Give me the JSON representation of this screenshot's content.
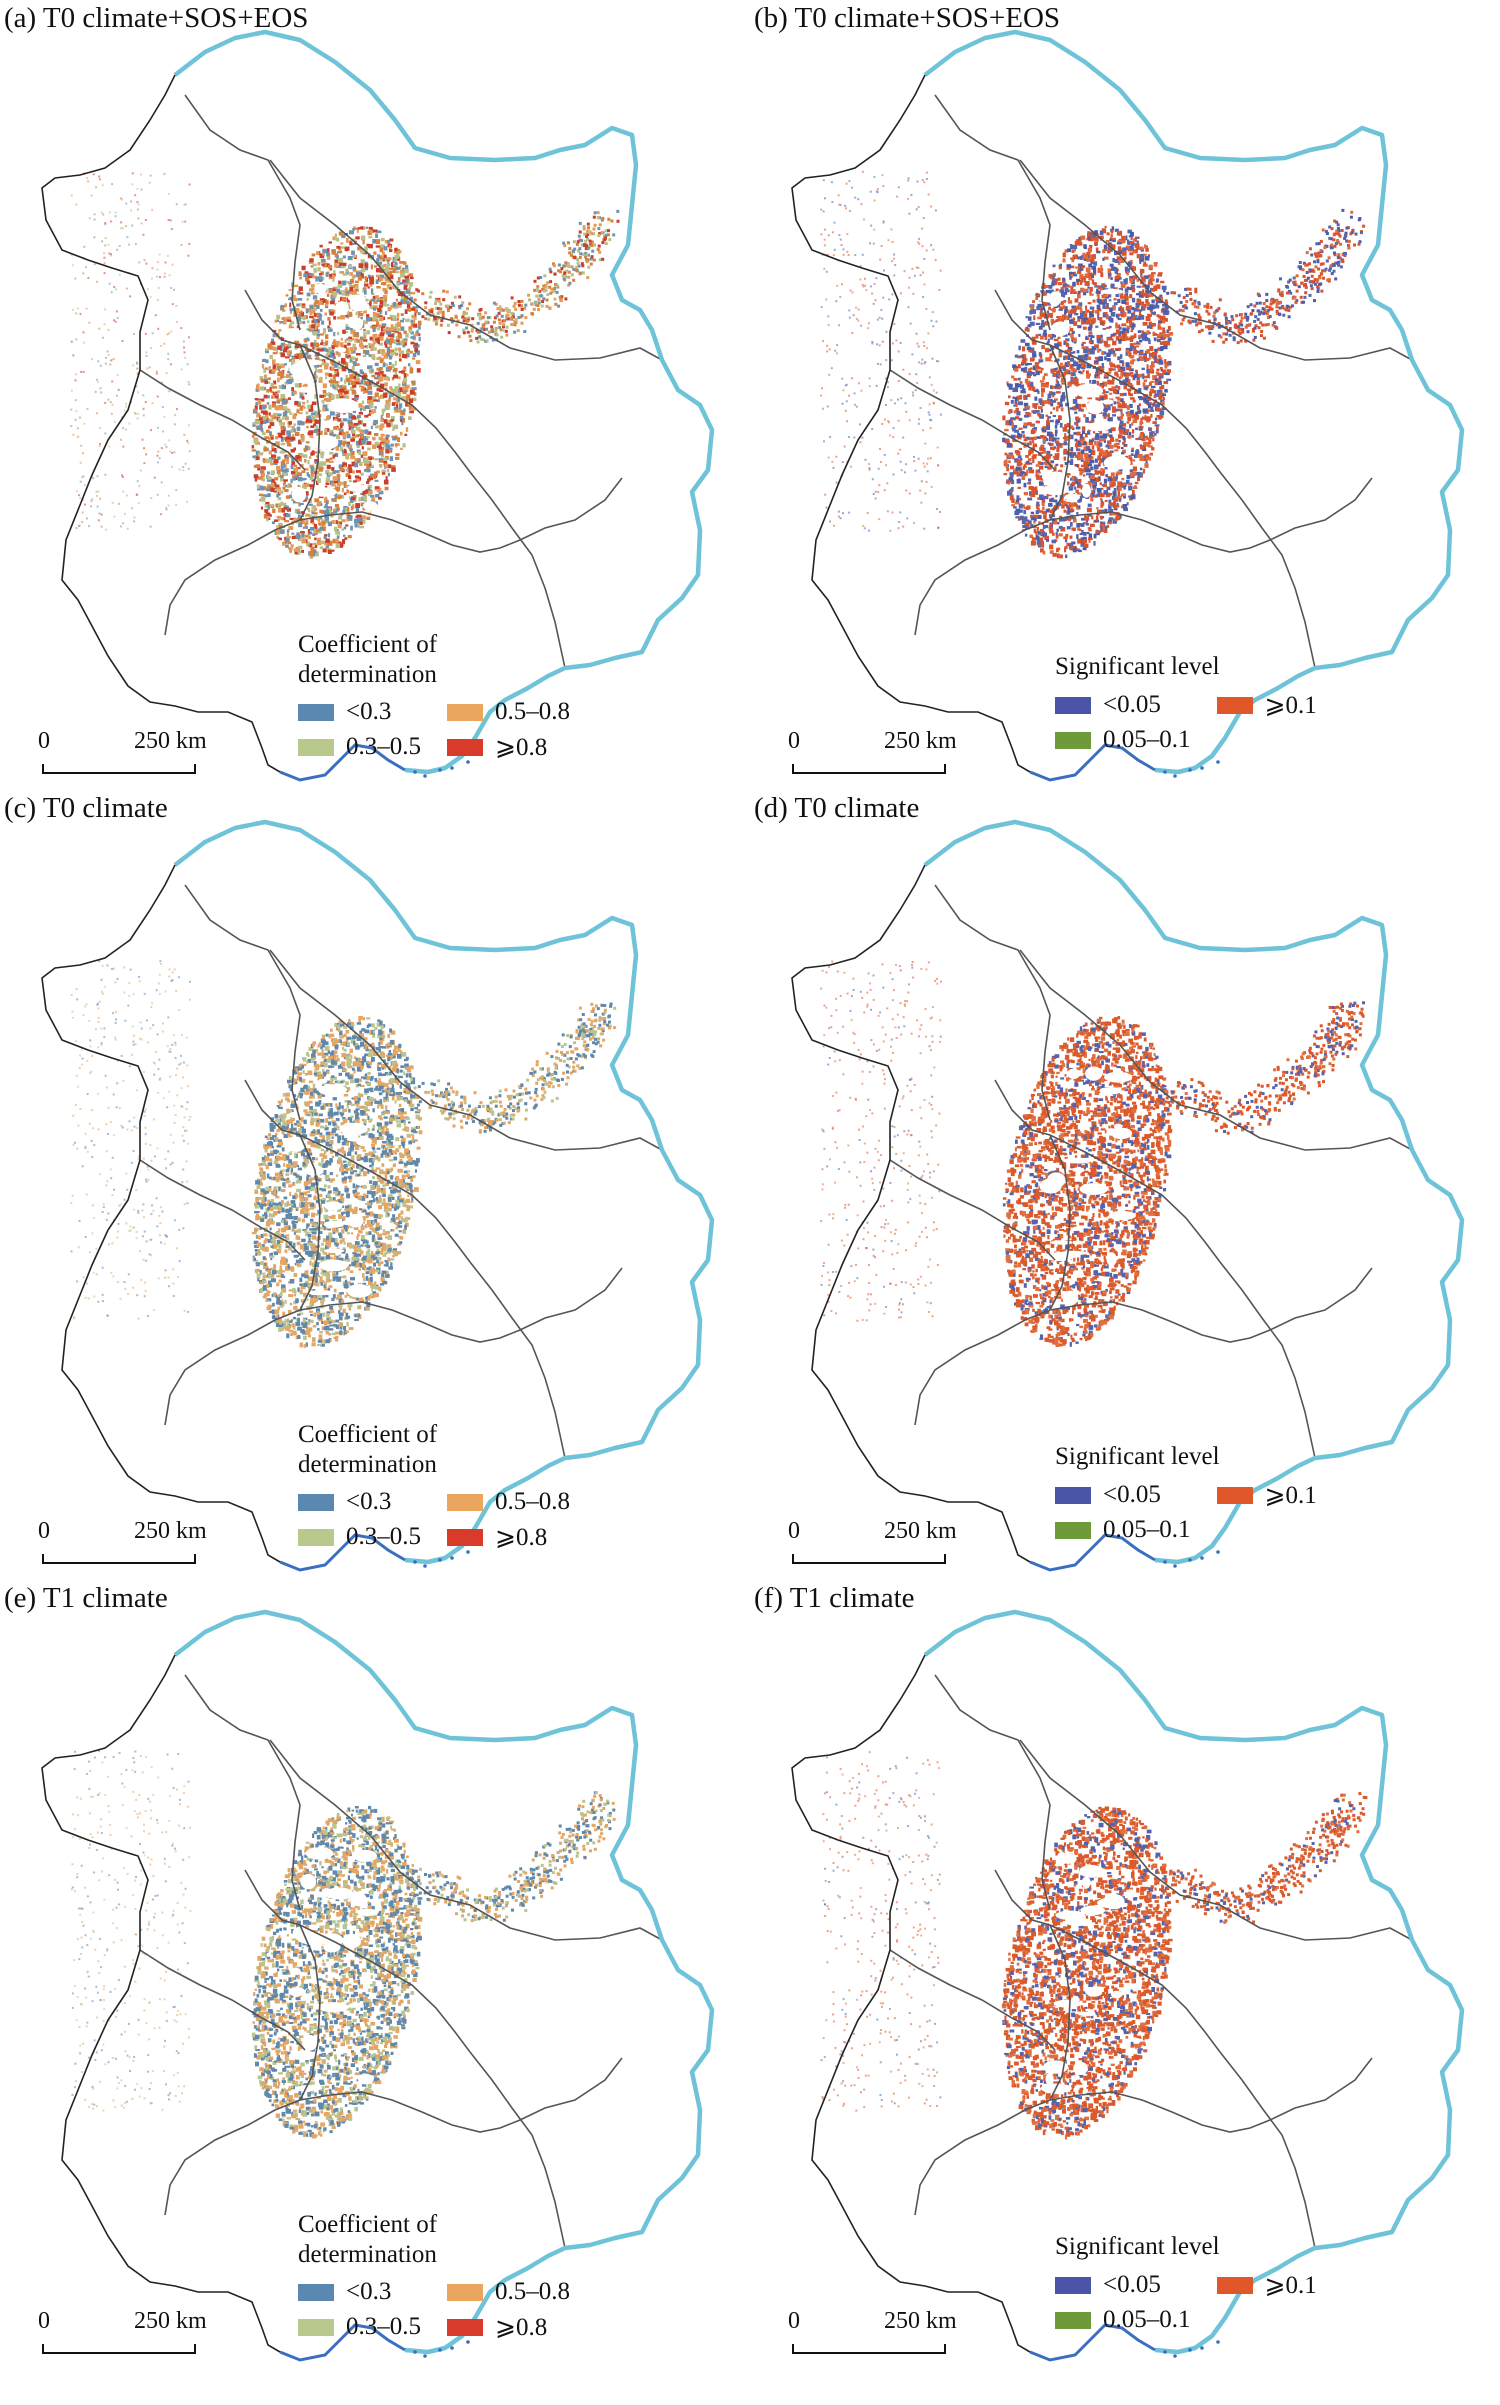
{
  "panels": [
    {
      "title": "(a) T0 climate+SOS+EOS",
      "legend_type": "r2",
      "map_colors": [
        "#d9803a",
        "#e59a58",
        "#b8c08a",
        "#cc3d2c",
        "#6c93b3"
      ]
    },
    {
      "title": "(b) T0 climate+SOS+EOS",
      "legend_type": "sig",
      "map_colors": [
        "#d8542e",
        "#4c5ca8",
        "#d8542e",
        "#5566b0",
        "#e06a3e"
      ]
    },
    {
      "title": "(c)  T0 climate",
      "legend_type": "r2",
      "map_colors": [
        "#5f88ab",
        "#e3a665",
        "#b9c48f",
        "#5f88ab",
        "#e3a665"
      ]
    },
    {
      "title": "(d) T0 climate",
      "legend_type": "sig",
      "map_colors": [
        "#db5a2c",
        "#db5a2c",
        "#db5a2c",
        "#5563ad",
        "#e0703f"
      ]
    },
    {
      "title": "(e) T1 climate",
      "legend_type": "r2",
      "map_colors": [
        "#5f88ab",
        "#5f88ab",
        "#e3a665",
        "#b9c48f",
        "#e3a665"
      ]
    },
    {
      "title": "(f) T1 climate",
      "legend_type": "sig",
      "map_colors": [
        "#db5a2c",
        "#db5a2c",
        "#db5a2c",
        "#5563ad",
        "#e0703f"
      ]
    }
  ],
  "legend_r2": {
    "title_line1": "Coefficient of",
    "title_line2": "determination",
    "items": [
      {
        "label": "<0.3",
        "color": "#5b88b0"
      },
      {
        "label": "0.5–0.8",
        "color": "#eaa65e"
      },
      {
        "label": "0.3–0.5",
        "color": "#b9c98d"
      },
      {
        "label": "⩾0.8",
        "color": "#d93b2b"
      }
    ]
  },
  "legend_sig": {
    "title": "Significant level",
    "items": [
      {
        "label": "<0.05",
        "color": "#4a55a8"
      },
      {
        "label": "⩾0.1",
        "color": "#e0582a"
      },
      {
        "label": "0.05–0.1",
        "color": "#6f9a3a"
      }
    ]
  },
  "scale_bar": {
    "label_start": "0",
    "label_end": "250 km"
  },
  "colors": {
    "coastline": "#6ec3d8",
    "coast_south": "#3a6fc0",
    "boundary": "#555555"
  }
}
